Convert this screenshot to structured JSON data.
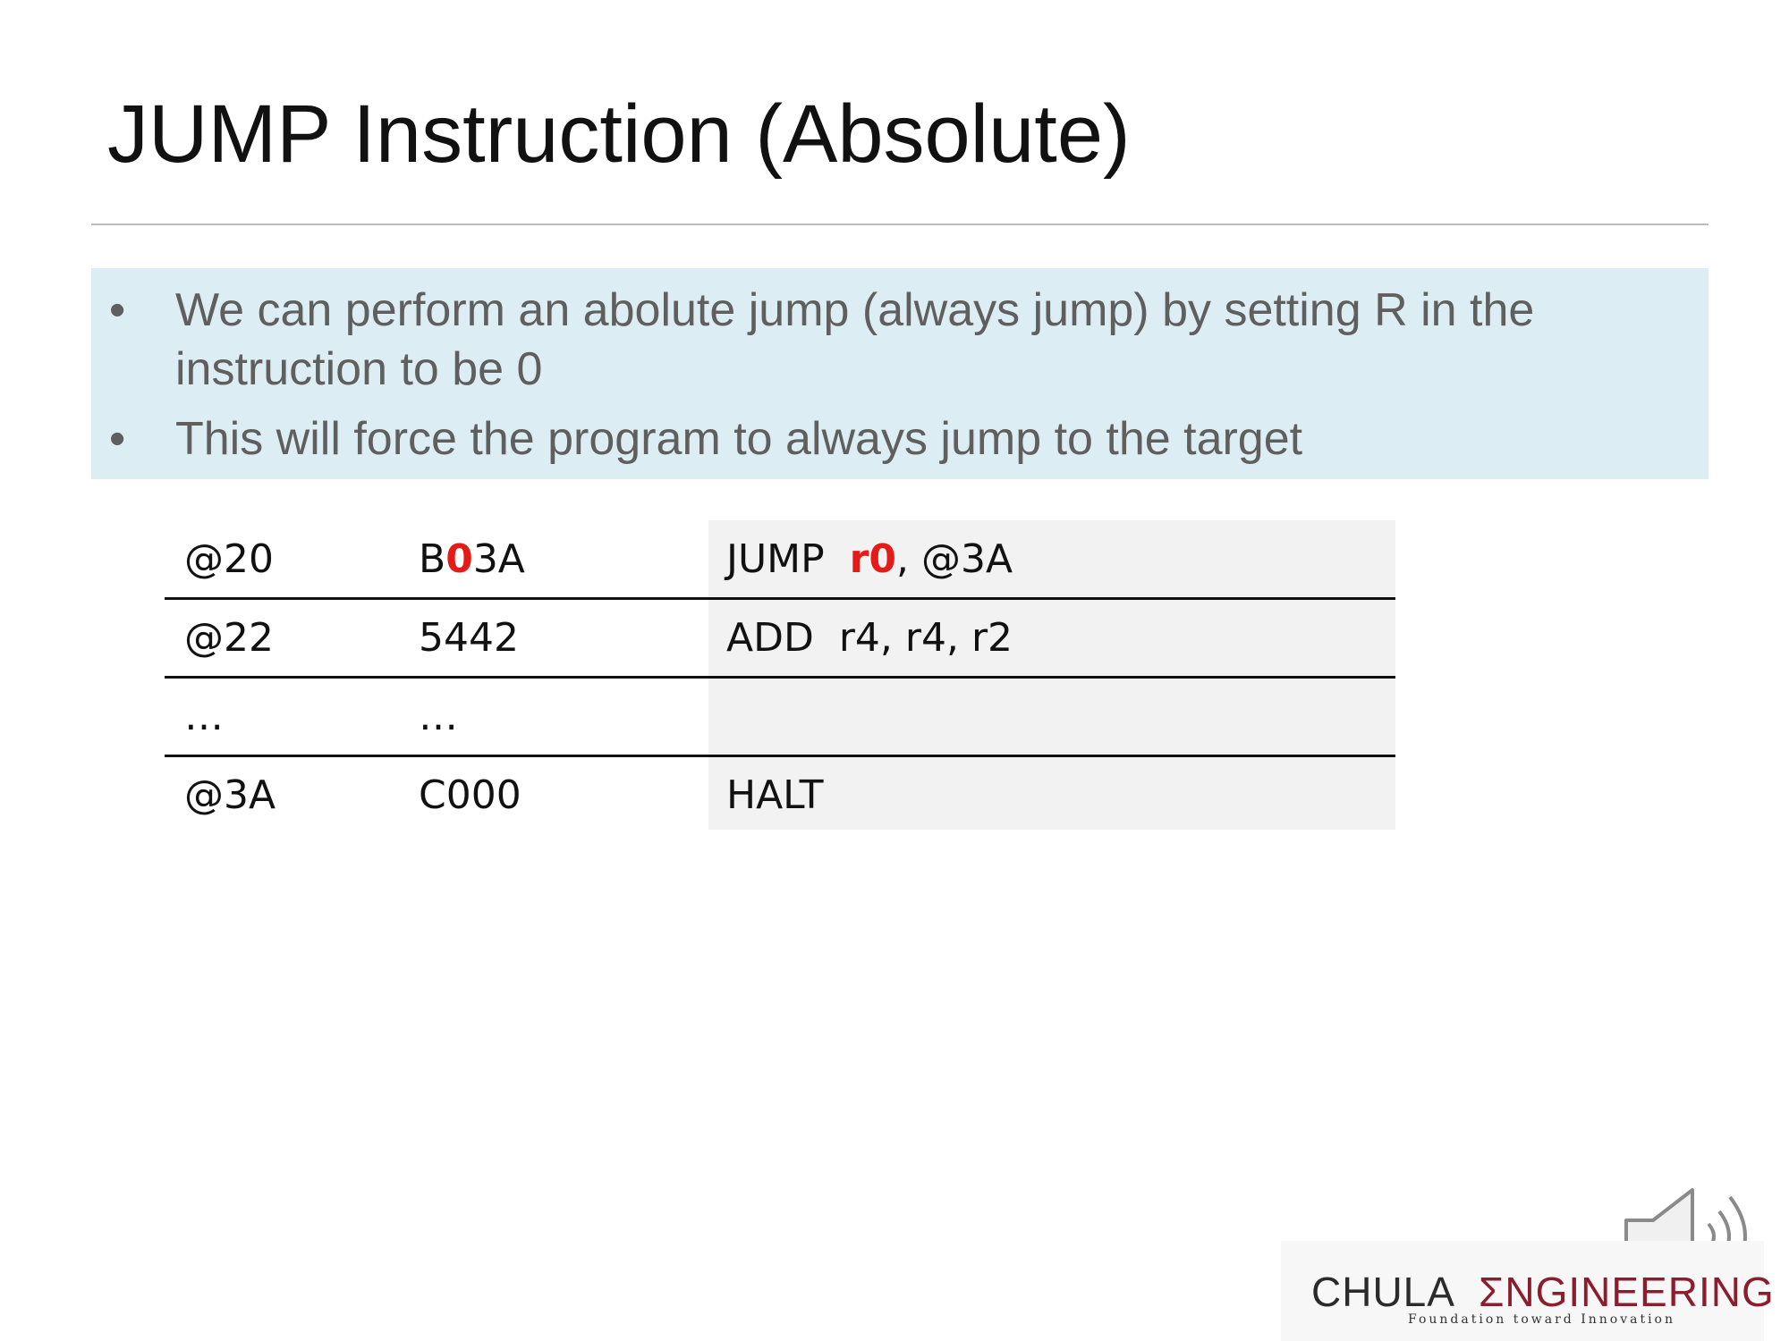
{
  "slide": {
    "title": "JUMP Instruction (Absolute)",
    "bullets": [
      "We can perform an abolute jump (always jump) by setting R in the instruction to be 0",
      "This will force the program to always jump to the target"
    ]
  },
  "program": {
    "rows": [
      {
        "addr": "@20",
        "hex_pre": "B",
        "hex_hl": "0",
        "hex_post": "3A",
        "asm_pre": "JUMP  ",
        "asm_hl": "r0",
        "asm_post": ", @3A"
      },
      {
        "addr": "@22",
        "hex": "5442",
        "asm": "ADD  r4, r4, r2"
      },
      {
        "addr": "…",
        "hex": "…",
        "asm": ""
      },
      {
        "addr": "@3A",
        "hex": "C000",
        "asm": "HALT"
      }
    ],
    "highlight_color": "#e41b17"
  },
  "logo": {
    "chula": "CHULA",
    "engineering": "ΣNGINEERING",
    "tagline": "Foundation toward Innovation"
  },
  "icons": {
    "speaker": "speaker-volume-icon"
  }
}
